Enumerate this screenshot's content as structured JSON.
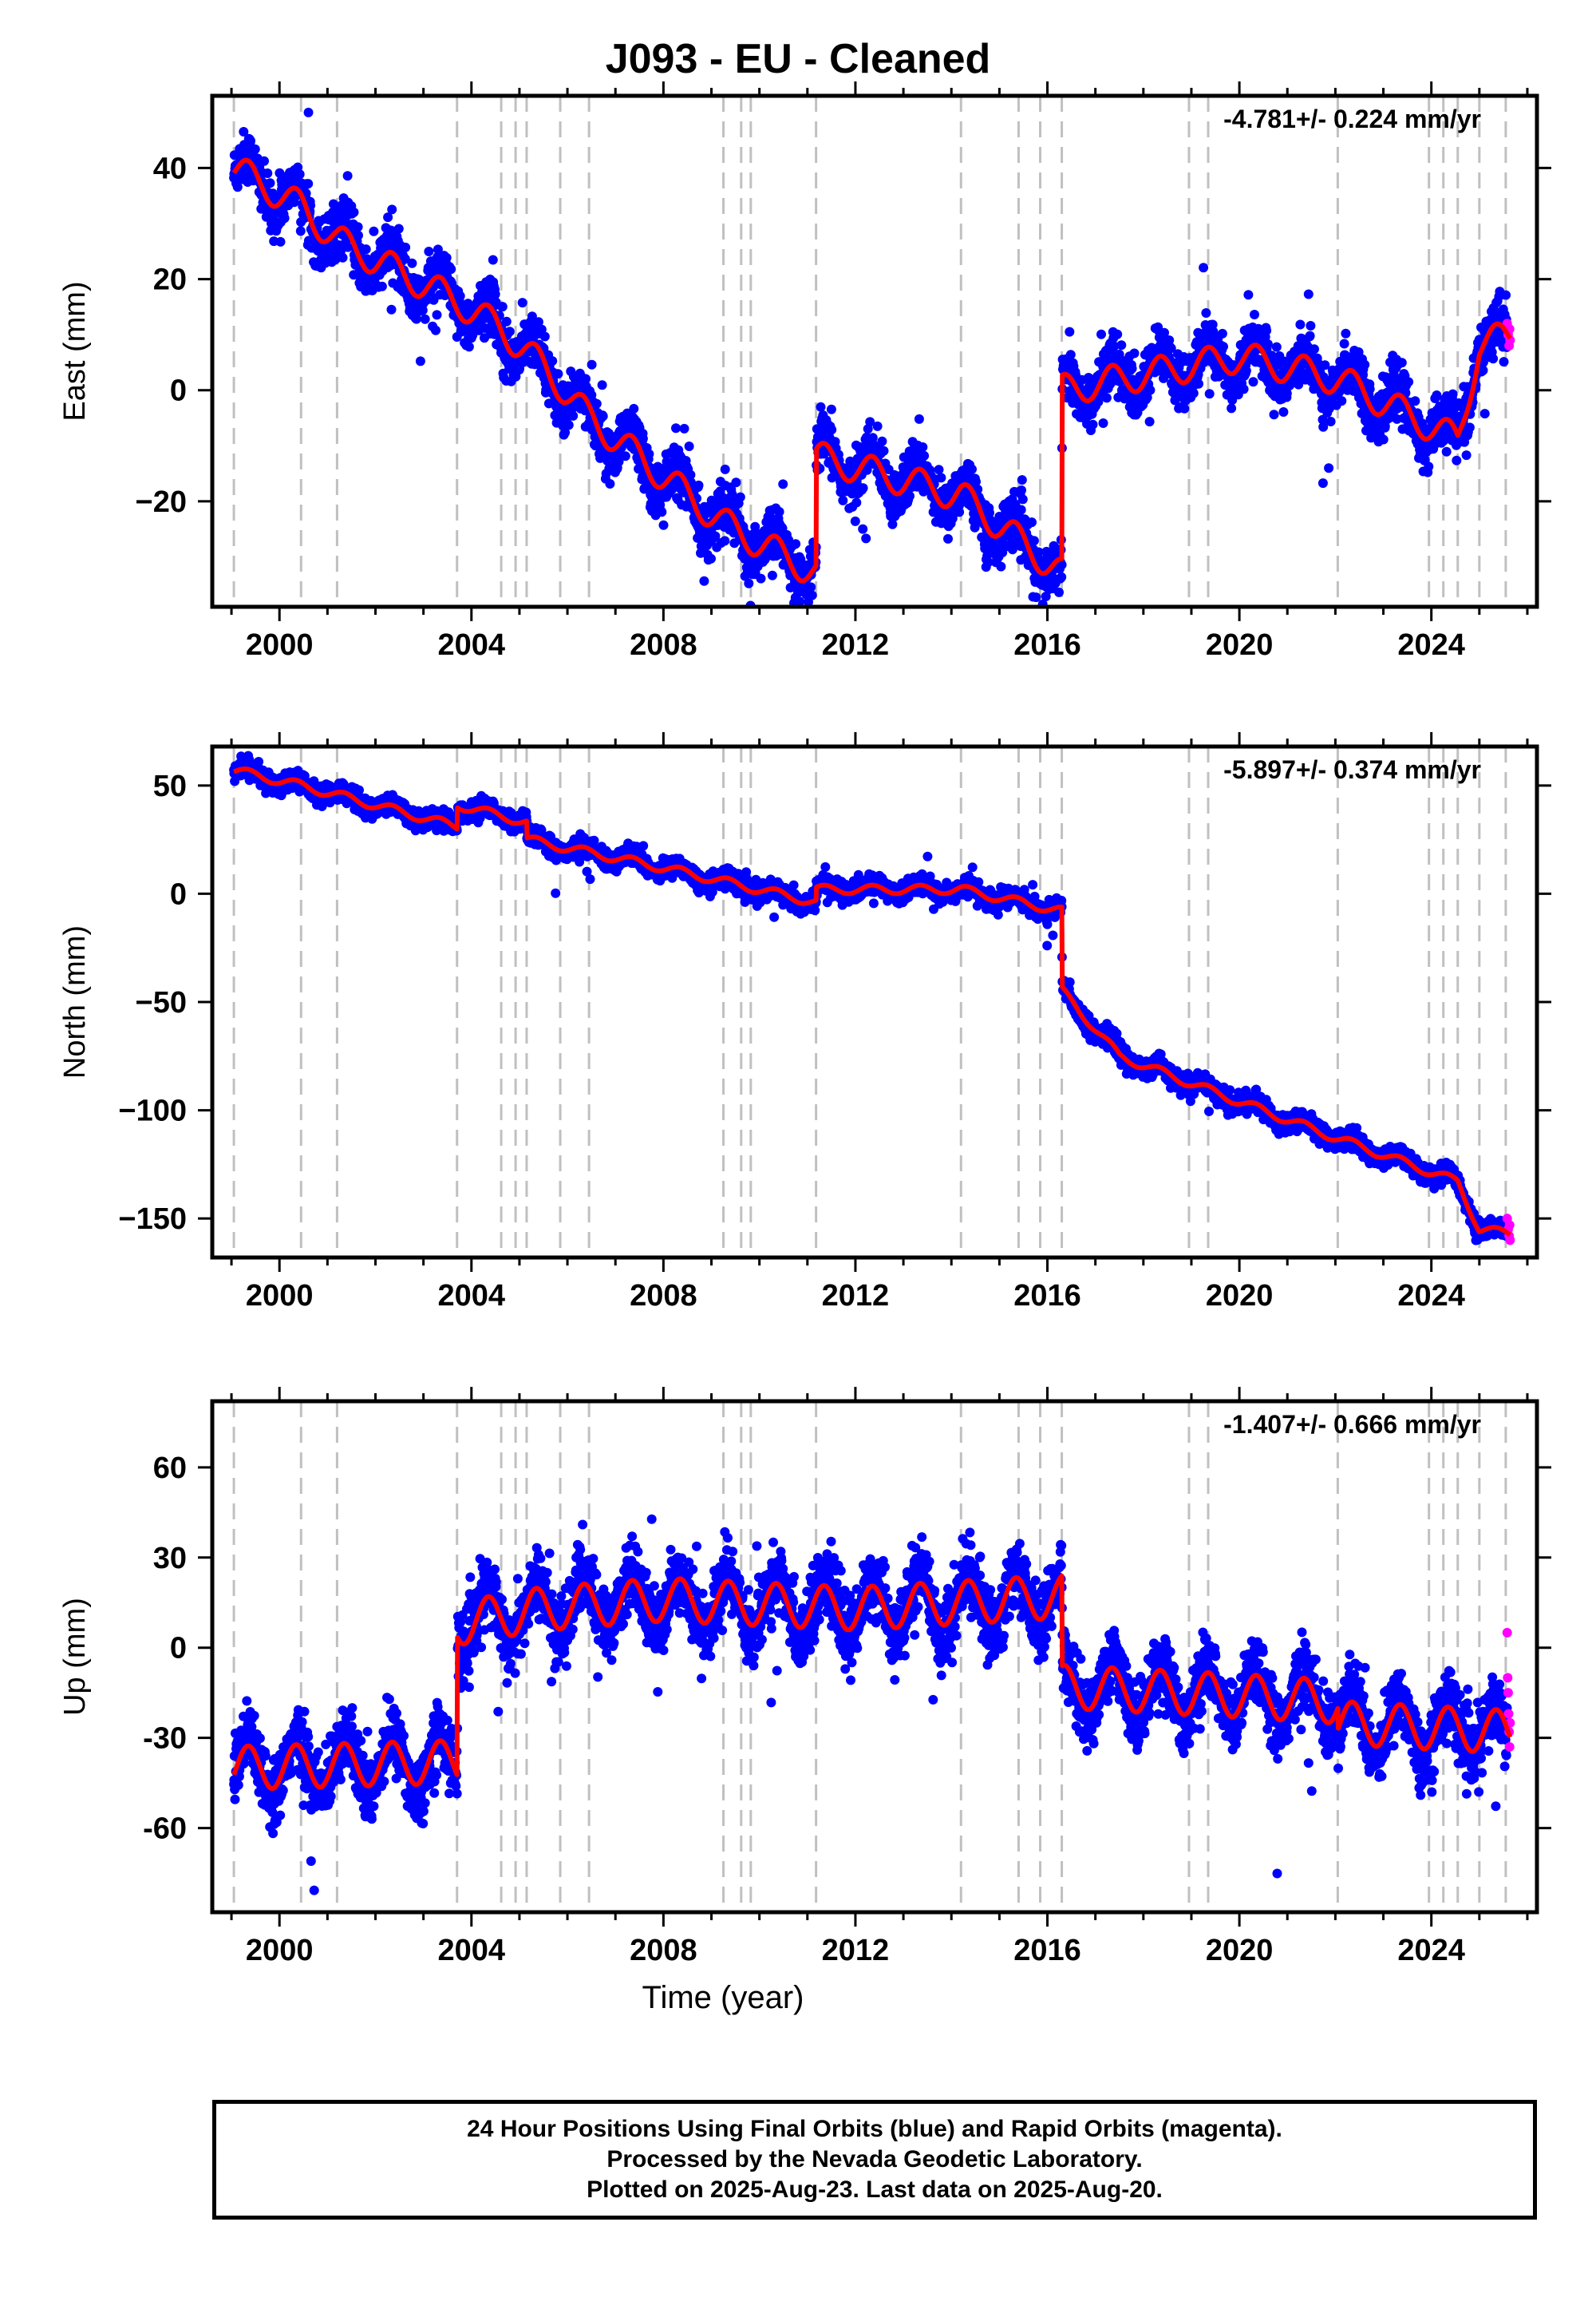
{
  "title": "J093  - EU - Cleaned",
  "x_axis_label": "Time (year)",
  "x_ticks": [
    "2000",
    "2004",
    "2008",
    "2012",
    "2016",
    "2020",
    "2024"
  ],
  "footer": {
    "line1": "24 Hour Positions Using Final Orbits (blue) and Rapid Orbits (magenta).",
    "line2": "Processed by the Nevada Geodetic Laboratory.",
    "line3": "Plotted on 2025-Aug-23. Last data on 2025-Aug-20."
  },
  "colors": {
    "final_orbits": "#0000ff",
    "rapid_orbits": "#ff00ff",
    "model": "#ff0000",
    "event_lines": "#c0c0c0"
  },
  "chart_data": [
    {
      "type": "scatter",
      "ylabel": "East (mm)",
      "rate_label": "-4.781+/- 0.224 mm/yr",
      "xlim": [
        1998.6,
        2026.2
      ],
      "ylim": [
        -39,
        53
      ],
      "yticks": [
        40,
        20,
        0,
        -20
      ],
      "ytick_labels": [
        "40",
        "20",
        "0",
        "−20"
      ],
      "event_lines": [
        1999.05,
        2000.45,
        2001.2,
        2003.7,
        2004.62,
        2004.92,
        2005.15,
        2005.85,
        2006.45,
        2009.25,
        2009.62,
        2009.82,
        2011.18,
        2014.2,
        2015.4,
        2015.85,
        2016.3,
        2018.95,
        2019.35,
        2022.05,
        2023.95,
        2024.25,
        2024.55,
        2025.0,
        2025.55
      ],
      "trend": [
        [
          1999.05,
          40
        ],
        [
          2000.45,
          33
        ],
        [
          2001.2,
          27
        ],
        [
          2003.7,
          16
        ],
        [
          2004.62,
          11
        ],
        [
          2005.15,
          7
        ],
        [
          2005.85,
          1
        ],
        [
          2006.45,
          -5
        ],
        [
          2009.25,
          -24
        ],
        [
          2011.18,
          -33
        ],
        [
          2011.19,
          -12
        ],
        [
          2014.2,
          -19
        ],
        [
          2016.3,
          -33
        ],
        [
          2016.31,
          0
        ],
        [
          2020.0,
          6
        ],
        [
          2022.05,
          2
        ],
        [
          2024.55,
          -9
        ],
        [
          2025.0,
          8
        ],
        [
          2025.64,
          10
        ]
      ],
      "seasonal_amplitude": 3.5,
      "scatter_sd": 2.3,
      "rapid_points": [
        [
          2025.58,
          12
        ],
        [
          2025.6,
          10
        ],
        [
          2025.62,
          8
        ],
        [
          2025.63,
          11
        ],
        [
          2025.64,
          9
        ]
      ]
    },
    {
      "type": "scatter",
      "ylabel": "North (mm)",
      "rate_label": "-5.897+/- 0.374 mm/yr",
      "xlim": [
        1998.6,
        2026.2
      ],
      "ylim": [
        -168,
        68
      ],
      "yticks": [
        50,
        0,
        -50,
        -100,
        -150
      ],
      "ytick_labels": [
        "50",
        "0",
        "−50",
        "−100",
        "−150"
      ],
      "event_lines": [
        1999.05,
        2000.45,
        2001.2,
        2003.7,
        2004.62,
        2004.92,
        2005.15,
        2005.85,
        2006.45,
        2009.25,
        2009.62,
        2009.82,
        2011.18,
        2014.2,
        2015.4,
        2015.85,
        2016.3,
        2018.95,
        2019.35,
        2022.05,
        2023.95,
        2024.25,
        2024.55,
        2025.0,
        2025.55
      ],
      "trend": [
        [
          1999.05,
          57
        ],
        [
          2000.45,
          50
        ],
        [
          2003.7,
          31
        ],
        [
          2003.71,
          41
        ],
        [
          2005.15,
          33
        ],
        [
          2005.16,
          25
        ],
        [
          2008.0,
          12
        ],
        [
          2011.18,
          -4
        ],
        [
          2011.19,
          2
        ],
        [
          2014.2,
          2
        ],
        [
          2016.3,
          -8
        ],
        [
          2016.31,
          -45
        ],
        [
          2017.5,
          -75
        ],
        [
          2020.0,
          -96
        ],
        [
          2022.05,
          -113
        ],
        [
          2024.55,
          -133
        ],
        [
          2025.0,
          -155
        ],
        [
          2025.64,
          -157
        ]
      ],
      "seasonal_amplitude": 2.5,
      "scatter_sd": 2.2,
      "rapid_points": [
        [
          2025.58,
          -150
        ],
        [
          2025.6,
          -155
        ],
        [
          2025.62,
          -158
        ],
        [
          2025.63,
          -153
        ],
        [
          2025.64,
          -160
        ]
      ]
    },
    {
      "type": "scatter",
      "ylabel": "Up (mm)",
      "rate_label": "-1.407+/- 0.666 mm/yr",
      "xlim": [
        1998.6,
        2026.2
      ],
      "ylim": [
        -88,
        82
      ],
      "yticks": [
        60,
        30,
        0,
        -30,
        -60
      ],
      "ytick_labels": [
        "60",
        "30",
        "0",
        "-30",
        "-60"
      ],
      "event_lines": [
        1999.05,
        2000.45,
        2001.2,
        2003.7,
        2004.62,
        2004.92,
        2005.15,
        2005.85,
        2006.45,
        2009.25,
        2009.62,
        2009.82,
        2011.18,
        2014.2,
        2015.4,
        2015.85,
        2016.3,
        2018.95,
        2019.35,
        2022.05,
        2023.95,
        2024.25,
        2024.55,
        2025.0,
        2025.55
      ],
      "trend": [
        [
          1999.05,
          -40
        ],
        [
          2003.7,
          -38
        ],
        [
          2003.71,
          8
        ],
        [
          2005.5,
          13
        ],
        [
          2008.0,
          16
        ],
        [
          2012.0,
          13
        ],
        [
          2016.3,
          17
        ],
        [
          2016.31,
          -13
        ],
        [
          2020.0,
          -16
        ],
        [
          2022.05,
          -18
        ],
        [
          2022.06,
          -25
        ],
        [
          2025.64,
          -28
        ]
      ],
      "seasonal_amplitude": 9,
      "scatter_sd": 5.5,
      "rapid_points": [
        [
          2025.58,
          5
        ],
        [
          2025.59,
          -10
        ],
        [
          2025.6,
          -15
        ],
        [
          2025.61,
          -22
        ],
        [
          2025.62,
          -28
        ],
        [
          2025.63,
          -33
        ],
        [
          2025.64,
          -25
        ]
      ]
    }
  ]
}
